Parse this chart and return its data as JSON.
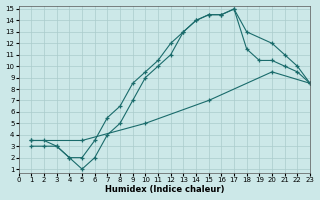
{
  "xlabel": "Humidex (Indice chaleur)",
  "bg_color": "#cce8e8",
  "grid_color": "#aacccc",
  "line_color": "#1a6b6b",
  "xlim": [
    0,
    23
  ],
  "ylim": [
    1,
    15
  ],
  "xticks": [
    0,
    1,
    2,
    3,
    4,
    5,
    6,
    7,
    8,
    9,
    10,
    11,
    12,
    13,
    14,
    15,
    16,
    17,
    18,
    19,
    20,
    21,
    22,
    23
  ],
  "yticks": [
    1,
    2,
    3,
    4,
    5,
    6,
    7,
    8,
    9,
    10,
    11,
    12,
    13,
    14,
    15
  ],
  "line1_x": [
    1,
    2,
    3,
    4,
    5,
    6,
    7,
    8,
    9,
    10,
    11,
    12,
    13,
    14,
    15,
    16,
    17,
    18,
    20,
    21,
    22,
    23
  ],
  "line1_y": [
    3,
    3,
    3,
    2,
    1,
    2,
    4,
    5,
    7,
    9,
    10,
    11,
    13,
    14,
    14.5,
    14.5,
    15,
    13,
    12,
    11,
    10,
    8.5
  ],
  "line2_x": [
    1,
    2,
    3,
    4,
    5,
    6,
    7,
    8,
    9,
    10,
    11,
    12,
    13,
    14,
    15,
    16,
    17,
    18,
    19,
    20,
    21,
    22,
    23
  ],
  "line2_y": [
    3.5,
    3.5,
    3,
    2,
    2,
    3.5,
    5.5,
    6.5,
    8.5,
    9.5,
    10.5,
    12,
    13,
    14,
    14.5,
    14.5,
    15,
    11.5,
    10.5,
    10.5,
    10,
    9.5,
    8.5
  ],
  "line3_x": [
    1,
    5,
    10,
    15,
    20,
    23
  ],
  "line3_y": [
    3.5,
    3.5,
    5,
    7,
    9.5,
    8.5
  ]
}
